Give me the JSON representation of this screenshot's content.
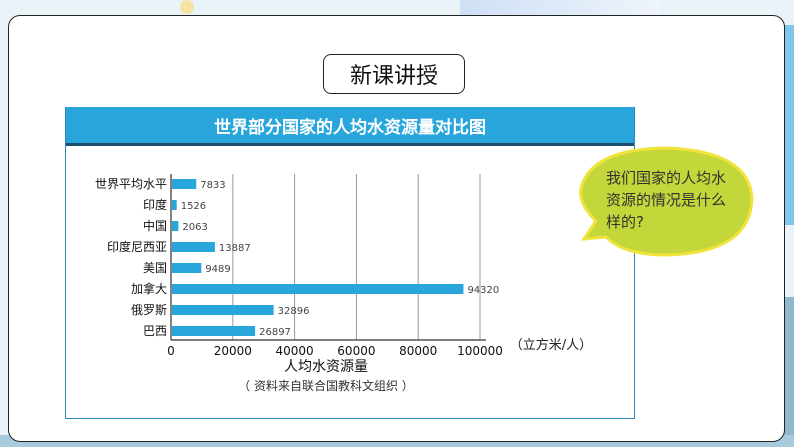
{
  "slide": {
    "section_title": "新课讲授",
    "bubble_text": "我们国家的人均水资源的情况是什么样的?"
  },
  "chart_data": {
    "type": "bar",
    "orientation": "horizontal",
    "title": "世界部分国家的人均水资源量对比图",
    "categories": [
      "世界平均水平",
      "印度",
      "中国",
      "印度尼西亚",
      "美国",
      "加拿大",
      "俄罗斯",
      "巴西"
    ],
    "values": [
      7833,
      1526,
      2063,
      13887,
      9489,
      94320,
      32896,
      26897
    ],
    "data_labels": [
      "7833",
      "1526",
      "2063",
      "13887",
      "9489",
      "94320",
      "32896",
      "26897"
    ],
    "xlabel": "人均水资源量",
    "unit": "（立方米/人）",
    "source": "（ 资料来自联合国教科文组织 ）",
    "xlim": [
      0,
      100000
    ],
    "xticks": [
      "0",
      "20000",
      "40000",
      "60000",
      "80000",
      "100000"
    ],
    "grid": "vertical",
    "bar_color": "#28a6dc"
  }
}
